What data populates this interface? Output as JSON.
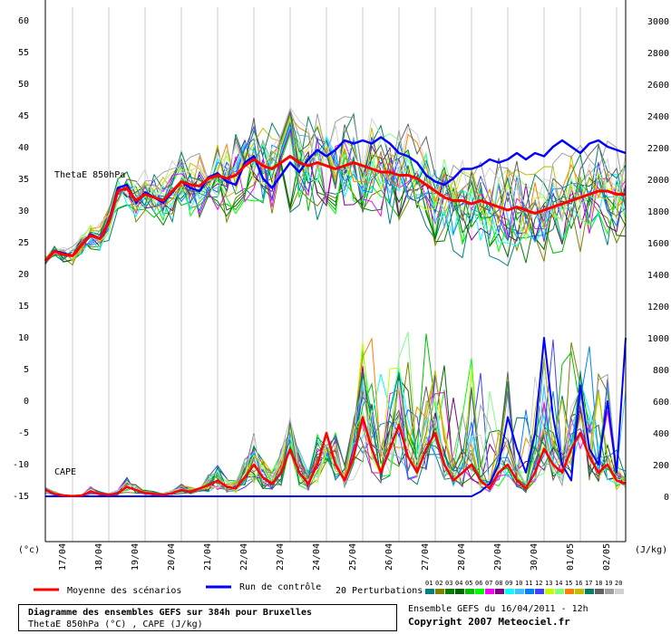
{
  "chart_data": {
    "type": "line",
    "title": "Diagramme des ensembles GEFS sur 384h pour Bruxelles",
    "subtitle": "ThetaE 850hPa (°C) , CAPE (J/kg)",
    "run_info": "Ensemble GEFS du 16/04/2011 - 12h",
    "copyright": "Copyright 2007 Meteociel.fr",
    "y_left_unit": "(°c)",
    "y_right_unit": "(J/kg)",
    "y_left_ticks": [
      "60",
      "55",
      "50",
      "45",
      "40",
      "35",
      "30",
      "25",
      "20",
      "15",
      "10",
      "5",
      "0",
      "-5",
      "-10",
      "-15"
    ],
    "y_right_ticks": [
      "3000",
      "2800",
      "2600",
      "2400",
      "2200",
      "2000",
      "1800",
      "1600",
      "1400",
      "1200",
      "1000",
      "800",
      "600",
      "400",
      "200",
      "0"
    ],
    "x_ticks": [
      "17/04",
      "18/04",
      "19/04",
      "20/04",
      "21/04",
      "22/04",
      "23/04",
      "24/04",
      "25/04",
      "26/04",
      "27/04",
      "28/04",
      "29/04",
      "30/04",
      "01/05",
      "02/05"
    ],
    "x_hours": [
      0,
      6,
      12,
      18,
      24,
      30,
      36,
      42,
      48,
      54,
      60,
      66,
      72,
      78,
      84,
      90,
      96,
      102,
      108,
      114,
      120,
      126,
      132,
      138,
      144,
      150,
      156,
      162,
      168,
      174,
      180,
      186,
      192,
      198,
      204,
      210,
      216,
      222,
      228,
      234,
      240,
      246,
      252,
      258,
      264,
      270,
      276,
      282,
      288,
      294,
      300,
      306,
      312,
      318,
      324,
      330,
      336,
      342,
      348,
      354,
      360,
      366,
      372,
      378,
      384
    ],
    "label_thetae": "ThetaE 850hPa",
    "label_cape": "CAPE",
    "legend": {
      "mean": "Moyenne des scénarios",
      "control": "Run de contrôle",
      "perturbations": "20 Perturbations",
      "perturbation_ids": [
        "01",
        "02",
        "03",
        "04",
        "05",
        "06",
        "07",
        "08",
        "09",
        "10",
        "11",
        "12",
        "13",
        "14",
        "15",
        "16",
        "17",
        "18",
        "19",
        "20"
      ]
    },
    "colors": {
      "mean": "#ff0000",
      "control": "#0000ff",
      "perturbations": [
        "#008080",
        "#808000",
        "#008000",
        "#006400",
        "#00c000",
        "#00ff00",
        "#ff00ff",
        "#800080",
        "#00ffff",
        "#40c0ff",
        "#0080ff",
        "#4040ff",
        "#c0ff00",
        "#80ff80",
        "#ff8000",
        "#c0c000",
        "#008060",
        "#606060",
        "#a0a0a0",
        "#d0d0d0"
      ]
    },
    "thetae_mean": [
      22,
      23.5,
      23,
      22.8,
      24.5,
      26,
      25.5,
      28,
      33,
      33.5,
      31.5,
      32.5,
      32,
      31.5,
      33,
      34.5,
      34,
      33.8,
      35,
      35.5,
      35,
      35.5,
      37,
      38,
      37,
      36.5,
      37.5,
      38.5,
      37.5,
      37,
      37.5,
      37,
      36.5,
      37,
      37.5,
      37,
      36.5,
      36,
      36,
      35.5,
      35.5,
      35,
      34,
      33,
      32,
      31.5,
      31.5,
      31,
      31.5,
      31,
      30.5,
      30,
      30.5,
      30,
      29.5,
      30,
      30.5,
      31,
      31.5,
      32,
      32.5,
      33,
      33,
      32.5,
      32.5
    ],
    "thetae_control": [
      22,
      23.6,
      23.2,
      22.8,
      24.5,
      26.2,
      25.5,
      28.2,
      33.5,
      34,
      31.2,
      32.8,
      32,
      31.2,
      32.8,
      34.5,
      33.5,
      33,
      35.2,
      35.8,
      34.5,
      34,
      37.5,
      38.5,
      35,
      33.5,
      35.5,
      37.5,
      36,
      38,
      39.5,
      38.5,
      39.5,
      41,
      40.5,
      41,
      40.5,
      41.5,
      40.5,
      39,
      38.5,
      37.5,
      35.5,
      34.5,
      34,
      35,
      36.5,
      36.5,
      37,
      38,
      37.5,
      38,
      39,
      38,
      39,
      38.5,
      40,
      41,
      40,
      39,
      40.5,
      41,
      40,
      39.5,
      39
    ],
    "cape_mean": [
      40,
      15,
      5,
      2,
      5,
      30,
      15,
      10,
      20,
      60,
      40,
      20,
      15,
      10,
      20,
      40,
      30,
      50,
      70,
      100,
      60,
      50,
      120,
      200,
      120,
      80,
      150,
      300,
      150,
      80,
      200,
      400,
      200,
      100,
      250,
      500,
      300,
      150,
      300,
      450,
      250,
      150,
      300,
      400,
      200,
      100,
      150,
      200,
      100,
      50,
      150,
      200,
      100,
      50,
      150,
      300,
      200,
      150,
      300,
      400,
      250,
      150,
      200,
      100,
      80
    ],
    "cape_control": [
      0,
      0,
      0,
      0,
      0,
      0,
      0,
      0,
      0,
      0,
      0,
      0,
      0,
      0,
      0,
      0,
      0,
      0,
      0,
      0,
      0,
      0,
      0,
      0,
      0,
      0,
      0,
      0,
      0,
      0,
      0,
      0,
      0,
      0,
      0,
      0,
      0,
      0,
      0,
      0,
      0,
      0,
      0,
      0,
      0,
      0,
      0,
      0,
      30,
      80,
      200,
      500,
      300,
      150,
      400,
      1000,
      500,
      200,
      100,
      700,
      300,
      200,
      600,
      150,
      1000
    ]
  }
}
